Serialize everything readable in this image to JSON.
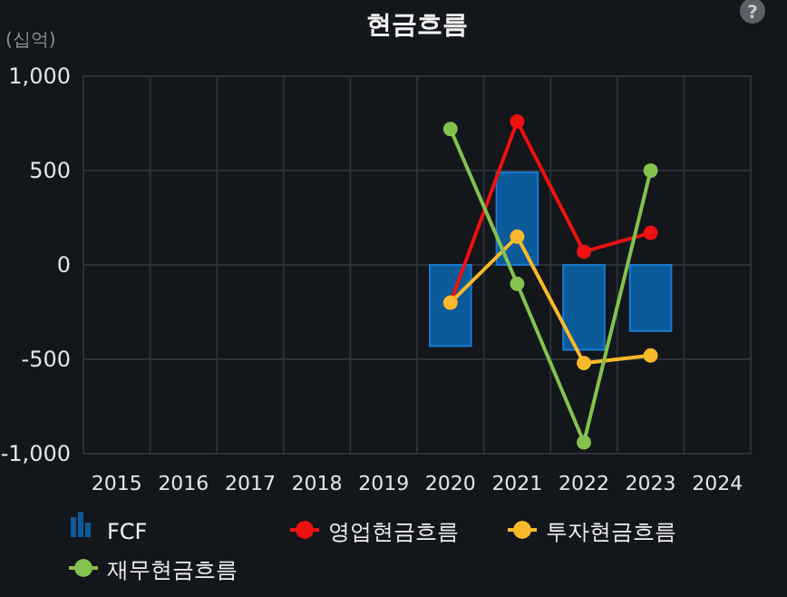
{
  "chart_data": {
    "type": "bar",
    "title": "현금흐름",
    "ylabel": "(십억)",
    "annotations": [
      "?"
    ],
    "categories": [
      "2015",
      "2016",
      "2017",
      "2018",
      "2019",
      "2020",
      "2021",
      "2022",
      "2023",
      "2024"
    ],
    "series": [
      {
        "name": "FCF",
        "color": "#0b5a9a",
        "values": [
          null,
          null,
          null,
          null,
          null,
          -430,
          490,
          -450,
          -350,
          null
        ]
      },
      {
        "name": "영업현금흐름",
        "type": "line",
        "color": "#ee1111",
        "values": [
          null,
          null,
          null,
          null,
          null,
          -200,
          760,
          70,
          170,
          null
        ]
      },
      {
        "name": "투자현금흐름",
        "type": "line",
        "color": "#f8b92a",
        "values": [
          null,
          null,
          null,
          null,
          null,
          -200,
          150,
          -520,
          -480,
          null
        ]
      },
      {
        "name": "재무현금흐름",
        "type": "line",
        "color": "#84c24e",
        "values": [
          null,
          null,
          null,
          null,
          null,
          720,
          -100,
          -940,
          500,
          null
        ]
      }
    ],
    "ylim": [
      -1000,
      1000
    ],
    "yticks": [
      {
        "value": -1000,
        "label": "-1,000"
      },
      -500,
      0,
      500,
      {
        "value": 1000,
        "label": "1,000"
      }
    ],
    "grid": true,
    "legend": "bottom",
    "marker": "circle"
  }
}
